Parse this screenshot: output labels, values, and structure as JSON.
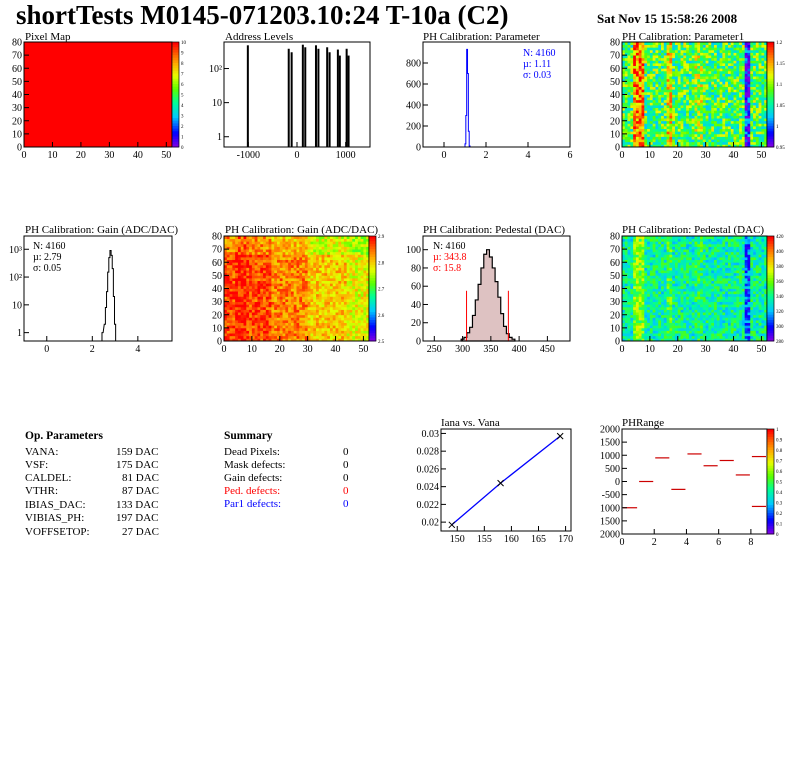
{
  "title": "shortTests M0145-071203.10:24 T-10a (C2)",
  "date": "Sat Nov 15 15:58:26 2008",
  "colors": {
    "red": "#ff0000",
    "blue": "#0000ff",
    "ped_fill": "#a05050"
  },
  "panels": {
    "pixel_map": {
      "title": "Pixel Map",
      "xticks": [
        "0",
        "10",
        "20",
        "30",
        "40",
        "50"
      ],
      "yticks": [
        "0",
        "10",
        "20",
        "30",
        "40",
        "50",
        "60",
        "70",
        "80"
      ],
      "palette_ticks": [
        "10",
        "9",
        "8",
        "7",
        "6",
        "5",
        "4",
        "3",
        "2",
        "1",
        "0"
      ]
    },
    "address_levels": {
      "title": "Address Levels",
      "xticks": [
        "-1000",
        "0",
        "1000"
      ],
      "yticks": [
        "1",
        "10",
        "10²"
      ]
    },
    "ph_param": {
      "title": "PH Calibration: Parameter",
      "xticks": [
        "0",
        "2",
        "4",
        "6"
      ],
      "yticks": [
        "0",
        "200",
        "400",
        "600",
        "800"
      ],
      "stats": [
        "N: 4160",
        "µ: 1.11",
        "σ: 0.03"
      ]
    },
    "ph_param1": {
      "title": "PH Calibration: Parameter1",
      "xticks": [
        "0",
        "10",
        "20",
        "30",
        "40",
        "50"
      ],
      "yticks": [
        "0",
        "10",
        "20",
        "30",
        "40",
        "50",
        "60",
        "70",
        "80"
      ],
      "palette_ticks": [
        "1.2",
        "1.15",
        "1.1",
        "1.05",
        "1",
        "0.95"
      ]
    },
    "gain_hist": {
      "title": "PH Calibration: Gain (ADC/DAC)",
      "xticks": [
        "0",
        "2",
        "4"
      ],
      "yticks": [
        "1",
        "10",
        "10²",
        "10³"
      ],
      "stats": [
        "N: 4160",
        "µ: 2.79",
        "σ: 0.05"
      ]
    },
    "gain_map": {
      "title": "PH Calibration: Gain (ADC/DAC)",
      "xticks": [
        "0",
        "10",
        "20",
        "30",
        "40",
        "50"
      ],
      "yticks": [
        "0",
        "10",
        "20",
        "30",
        "40",
        "50",
        "60",
        "70",
        "80"
      ],
      "palette_ticks": [
        "2.9",
        "2.8",
        "2.7",
        "2.6",
        "2.5"
      ]
    },
    "ped_hist": {
      "title": "PH Calibration: Pedestal (DAC)",
      "xticks": [
        "250",
        "300",
        "350",
        "400",
        "450"
      ],
      "yticks": [
        "0",
        "20",
        "40",
        "60",
        "80",
        "100"
      ],
      "stats": [
        "N: 4160",
        "µ: 343.8",
        "σ: 15.8"
      ]
    },
    "ped_map": {
      "title": "PH Calibration: Pedestal (DAC)",
      "xticks": [
        "0",
        "10",
        "20",
        "30",
        "40",
        "50"
      ],
      "yticks": [
        "0",
        "10",
        "20",
        "30",
        "40",
        "50",
        "60",
        "70",
        "80"
      ],
      "palette_ticks": [
        "420",
        "400",
        "380",
        "360",
        "340",
        "320",
        "300",
        "280"
      ]
    },
    "iana": {
      "title": "Iana vs. Vana",
      "xticks": [
        "150",
        "155",
        "160",
        "165",
        "170"
      ],
      "yticks": [
        "0.02",
        "0.022",
        "0.024",
        "0.026",
        "0.028",
        "0.03"
      ]
    },
    "phrange": {
      "title": "PHRange",
      "xticks": [
        "0",
        "2",
        "4",
        "6",
        "8"
      ],
      "yticks": [
        "2000",
        "1500",
        "1000",
        "500",
        "0",
        "-500",
        "1000",
        "1500",
        "2000"
      ],
      "palette_ticks": [
        "1",
        "0.9",
        "0.8",
        "0.7",
        "0.6",
        "0.5",
        "0.4",
        "0.3",
        "0.2",
        "0.1",
        "0"
      ]
    }
  },
  "op_params": {
    "heading": "Op. Parameters",
    "rows": [
      {
        "name": "VANA:",
        "value": "159 DAC"
      },
      {
        "name": "VSF:",
        "value": "175 DAC"
      },
      {
        "name": "CALDEL:",
        "value": "81 DAC"
      },
      {
        "name": "VTHR:",
        "value": "87 DAC"
      },
      {
        "name": "IBIAS_DAC:",
        "value": "133 DAC"
      },
      {
        "name": "VIBIAS_PH:",
        "value": "197 DAC"
      },
      {
        "name": "VOFFSETOP:",
        "value": "27 DAC"
      }
    ]
  },
  "summary": {
    "heading": "Summary",
    "rows": [
      {
        "name": "Dead Pixels:",
        "value": "0",
        "color": "#000000"
      },
      {
        "name": "Mask defects:",
        "value": "0",
        "color": "#000000"
      },
      {
        "name": "Gain defects:",
        "value": "0",
        "color": "#000000"
      },
      {
        "name": "Ped. defects:",
        "value": "0",
        "color": "#ff0000"
      },
      {
        "name": "Par1 defects:",
        "value": "0",
        "color": "#0000ff"
      }
    ]
  },
  "chart_data": [
    {
      "type": "heatmap",
      "title": "Pixel Map",
      "xlim": [
        0,
        52
      ],
      "ylim": [
        0,
        80
      ],
      "zlim": [
        0,
        10
      ],
      "uniform_value": 10
    },
    {
      "type": "bar",
      "title": "Address Levels",
      "xlim": [
        -1500,
        1500
      ],
      "ylim": [
        0.5,
        600
      ],
      "log_y": true,
      "x": [
        -1010,
        -170,
        -110,
        120,
        170,
        390,
        440,
        620,
        670,
        840,
        880,
        1020,
        1060
      ],
      "values": [
        480,
        380,
        300,
        500,
        420,
        480,
        380,
        420,
        300,
        360,
        240,
        380,
        240
      ]
    },
    {
      "type": "bar",
      "title": "PH Calibration: Parameter",
      "xlim": [
        -1,
        6
      ],
      "ylim": [
        0,
        1000
      ],
      "x": [
        1.02,
        1.06,
        1.1,
        1.14,
        1.18,
        1.22
      ],
      "values": [
        30,
        300,
        930,
        700,
        150,
        10
      ]
    },
    {
      "type": "heatmap",
      "title": "PH Calibration: Parameter1",
      "xlim": [
        0,
        52
      ],
      "ylim": [
        0,
        80
      ],
      "zlim": [
        0.95,
        1.2
      ]
    },
    {
      "type": "bar",
      "title": "PH Calibration: Gain (ADC/DAC)",
      "xlim": [
        -1,
        5.5
      ],
      "ylim": [
        0.5,
        3000
      ],
      "log_y": true,
      "x": [
        2.45,
        2.55,
        2.6,
        2.65,
        2.7,
        2.75,
        2.8,
        2.85,
        2.9,
        2.95,
        3.0
      ],
      "values": [
        1,
        2,
        8,
        30,
        150,
        500,
        900,
        600,
        200,
        20,
        2
      ]
    },
    {
      "type": "heatmap",
      "title": "PH Calibration: Gain (ADC/DAC)",
      "xlim": [
        0,
        52
      ],
      "ylim": [
        0,
        80
      ],
      "zlim": [
        2.45,
        2.9
      ]
    },
    {
      "type": "bar",
      "title": "PH Calibration: Pedestal (DAC)",
      "xlim": [
        230,
        490
      ],
      "ylim": [
        0,
        115
      ],
      "x": [
        300,
        305,
        310,
        315,
        320,
        325,
        330,
        335,
        340,
        345,
        350,
        355,
        360,
        365,
        370,
        375,
        380,
        385,
        390
      ],
      "values": [
        2,
        4,
        9,
        15,
        28,
        45,
        62,
        80,
        95,
        100,
        92,
        80,
        65,
        48,
        30,
        16,
        8,
        4,
        2
      ],
      "markers": [
        [
          307,
          55
        ],
        [
          381,
          55
        ]
      ]
    },
    {
      "type": "heatmap",
      "title": "PH Calibration: Pedestal (DAC)",
      "xlim": [
        0,
        52
      ],
      "ylim": [
        0,
        80
      ],
      "zlim": [
        280,
        420
      ]
    },
    {
      "type": "line",
      "title": "Iana vs. Vana",
      "xlim": [
        147,
        171
      ],
      "ylim": [
        0.019,
        0.0305
      ],
      "x": [
        149,
        158,
        169
      ],
      "values": [
        0.0197,
        0.0244,
        0.0297
      ]
    },
    {
      "type": "scatter",
      "title": "PHRange",
      "xlim": [
        0,
        9
      ],
      "ylim": [
        -2000,
        2000
      ],
      "segments": [
        [
          0,
          1,
          -1000
        ],
        [
          1,
          2,
          0
        ],
        [
          2,
          3,
          900
        ],
        [
          3,
          4,
          -300
        ],
        [
          4,
          5,
          1050
        ],
        [
          5,
          6,
          600
        ],
        [
          6,
          7,
          800
        ],
        [
          7,
          8,
          250
        ],
        [
          8,
          9,
          950
        ],
        [
          8,
          9,
          -950
        ]
      ]
    }
  ]
}
